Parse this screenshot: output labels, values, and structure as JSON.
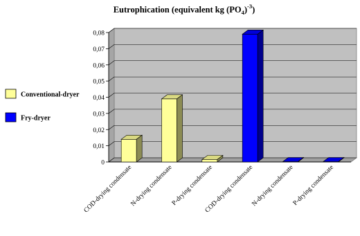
{
  "chart_data": {
    "type": "bar",
    "title": {
      "prefix": "Eutrophication (equivalent kg (PO",
      "sub": "4",
      "middle": ")",
      "sup": "-3",
      "suffix": ")"
    },
    "categories": [
      "COD-drying condensate",
      "N-drying condensate",
      "P-drying condensate",
      "COD-drying condensate",
      "N-drying condensate",
      "P-drying condensate"
    ],
    "series": [
      {
        "name": "Conventional-dryer",
        "color": "#ffff99",
        "values": [
          0.014,
          0.039,
          0.0015,
          null,
          null,
          null
        ]
      },
      {
        "name": "Fry-dryer",
        "color": "#0000ff",
        "values": [
          null,
          null,
          null,
          0.079,
          0.0002,
          0.0002
        ]
      }
    ],
    "ylim": [
      0,
      0.08
    ],
    "yticks": [
      "0",
      "0,01",
      "0,02",
      "0,03",
      "0,04",
      "0,05",
      "0,06",
      "0,07",
      "0,08"
    ],
    "grid": true,
    "plot_color": "#c0c0c0",
    "legend_position": "left",
    "xlabel": "",
    "ylabel": ""
  }
}
